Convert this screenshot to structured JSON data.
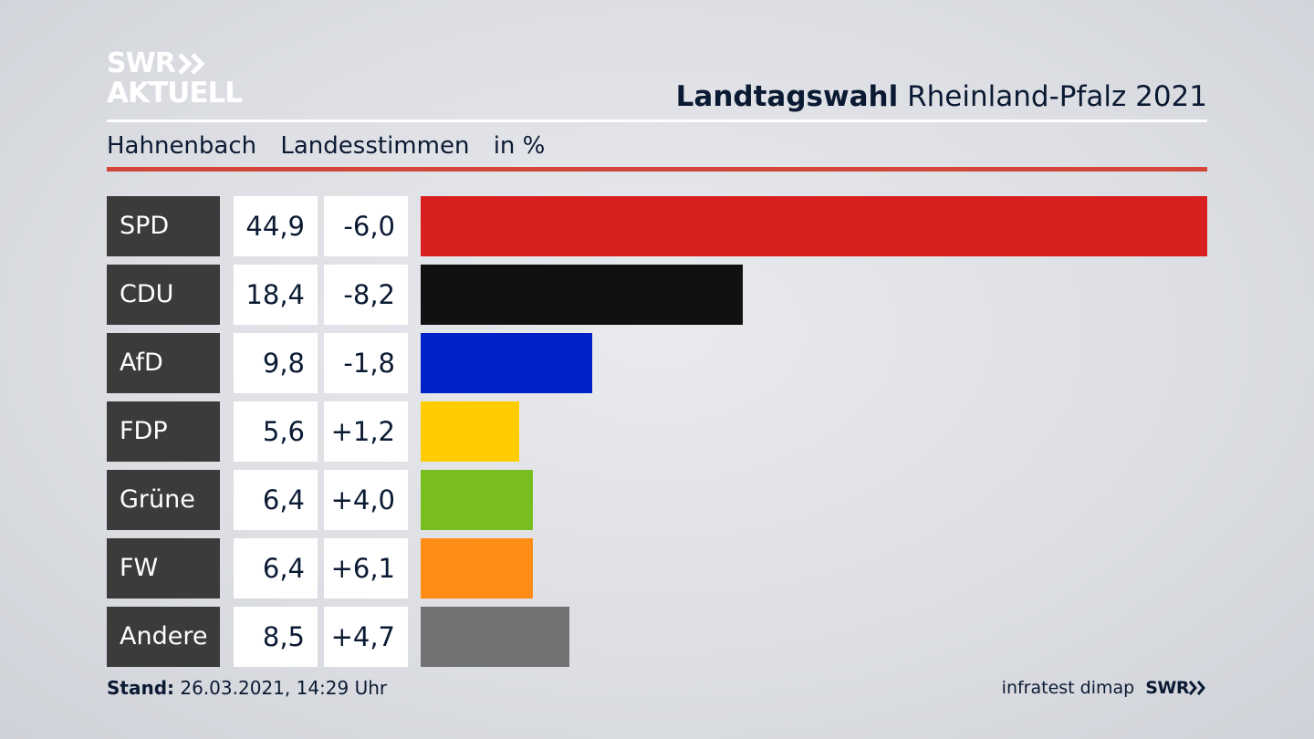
{
  "logo": {
    "line1": "SWR",
    "line2": "AKTUELL"
  },
  "header": {
    "title_strong": "Landtagswahl",
    "title_rest": "Rheinland-Pfalz 2021",
    "location": "Hahnenbach",
    "measure": "Landesstimmen",
    "unit": "in %"
  },
  "colors": {
    "accent_rule": "#d2473a",
    "party_label_bg": "#3b3b3b"
  },
  "chart_data": {
    "type": "bar",
    "orientation": "horizontal",
    "title": "Landtagswahl Rheinland-Pfalz 2021",
    "subtitle": "Hahnenbach Landesstimmen in %",
    "categories": [
      "SPD",
      "CDU",
      "AfD",
      "FDP",
      "Grüne",
      "FW",
      "Andere"
    ],
    "values": [
      44.9,
      18.4,
      9.8,
      5.6,
      6.4,
      6.4,
      8.5
    ],
    "value_labels": [
      "44,9",
      "18,4",
      "9,8",
      "5,6",
      "6,4",
      "6,4",
      "8,5"
    ],
    "changes": [
      -6.0,
      -8.2,
      -1.8,
      1.2,
      4.0,
      6.1,
      4.7
    ],
    "change_labels": [
      "-6,0",
      "-8,2",
      "-1,8",
      "+1,2",
      "+4,0",
      "+6,1",
      "+4,7"
    ],
    "bar_colors": [
      "#d71f1f",
      "#111111",
      "#0020c8",
      "#ffcc00",
      "#78be1e",
      "#ff8c14",
      "#717274"
    ],
    "grid": false,
    "legend": "none"
  },
  "footer": {
    "stand_label": "Stand:",
    "stand_value": "26.03.2021, 14:29 Uhr",
    "source": "infratest dimap",
    "source_logo": "SWR"
  }
}
